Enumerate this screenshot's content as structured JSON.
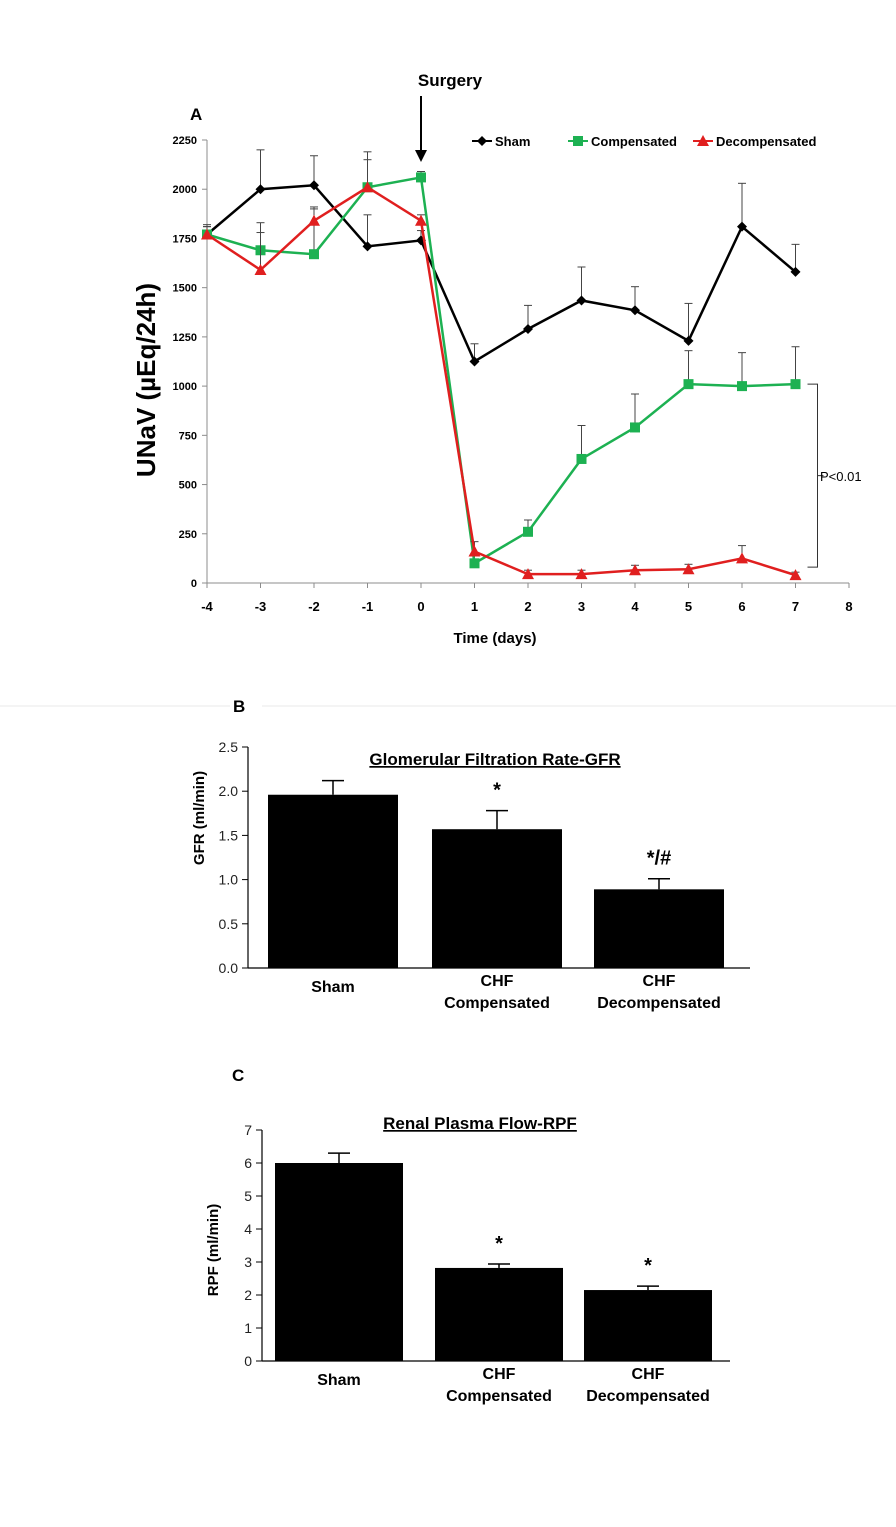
{
  "chart_data": [
    {
      "panel_label": "A",
      "type": "line",
      "annotation": "Surgery",
      "xlabel": "Time (days)",
      "ylabel": "UNaV (µEq/24h)",
      "xlim": [
        -4,
        8
      ],
      "ylim": [
        0,
        2250
      ],
      "x_ticks": [
        "-4",
        "-3",
        "-2",
        "-1",
        "0",
        "1",
        "2",
        "3",
        "4",
        "5",
        "6",
        "7",
        "8"
      ],
      "y_ticks": [
        "0",
        "250",
        "500",
        "750",
        "1000",
        "1250",
        "1500",
        "1750",
        "2000",
        "2250"
      ],
      "legend_position": "top-right",
      "bracket_label": "P<0.01",
      "series": [
        {
          "name": "Sham",
          "color": "#000000",
          "marker": "diamond",
          "x": [
            -4,
            -3,
            -2,
            -1,
            0,
            1,
            2,
            3,
            4,
            5,
            6,
            7
          ],
          "y": [
            1770,
            2000,
            2020,
            1710,
            1740,
            1125,
            1290,
            1435,
            1385,
            1230,
            1810,
            1580
          ],
          "err": [
            50,
            200,
            150,
            160,
            50,
            90,
            120,
            170,
            120,
            190,
            220,
            140
          ]
        },
        {
          "name": "Compensated",
          "color": "#1db152",
          "marker": "square",
          "x": [
            -4,
            -3,
            -2,
            -1,
            0,
            1,
            2,
            3,
            4,
            5,
            6,
            7
          ],
          "y": [
            1770,
            1690,
            1670,
            2010,
            2060,
            100,
            260,
            630,
            790,
            1010,
            1000,
            1010
          ],
          "err": [
            40,
            140,
            240,
            140,
            30,
            40,
            60,
            170,
            170,
            170,
            170,
            190
          ]
        },
        {
          "name": "Decompensated",
          "color": "#e01f1f",
          "marker": "triangle",
          "x": [
            -4,
            -3,
            -2,
            -1,
            0,
            1,
            2,
            3,
            4,
            5,
            6,
            7
          ],
          "y": [
            1770,
            1590,
            1840,
            2010,
            1840,
            160,
            45,
            45,
            65,
            70,
            125,
            40
          ],
          "err": [
            40,
            190,
            60,
            180,
            30,
            50,
            20,
            20,
            25,
            25,
            65,
            15
          ]
        }
      ]
    },
    {
      "panel_label": "B",
      "type": "bar",
      "title": "Glomerular Filtration Rate-GFR",
      "ylabel": "GFR (ml/min)",
      "ylim": [
        0,
        2.5
      ],
      "y_ticks": [
        "0.0",
        "0.5",
        "1.0",
        "1.5",
        "2.0",
        "2.5"
      ],
      "categories": [
        [
          "Sham"
        ],
        [
          "CHF",
          "Compensated"
        ],
        [
          "CHF",
          "Decompensated"
        ]
      ],
      "values": [
        1.96,
        1.57,
        0.89
      ],
      "err": [
        0.16,
        0.21,
        0.12
      ],
      "markers": [
        "",
        "*",
        "*/#"
      ]
    },
    {
      "panel_label": "C",
      "type": "bar",
      "title": "Renal Plasma Flow-RPF",
      "ylabel": "RPF (ml/min)",
      "ylim": [
        0,
        7
      ],
      "y_ticks": [
        "0",
        "1",
        "2",
        "3",
        "4",
        "5",
        "6",
        "7"
      ],
      "categories": [
        [
          "Sham"
        ],
        [
          "CHF",
          "Compensated"
        ],
        [
          "CHF",
          "Decompensated"
        ]
      ],
      "values": [
        6.0,
        2.82,
        2.15
      ],
      "err": [
        0.3,
        0.12,
        0.12
      ],
      "markers": [
        "",
        "*",
        "*"
      ]
    }
  ]
}
